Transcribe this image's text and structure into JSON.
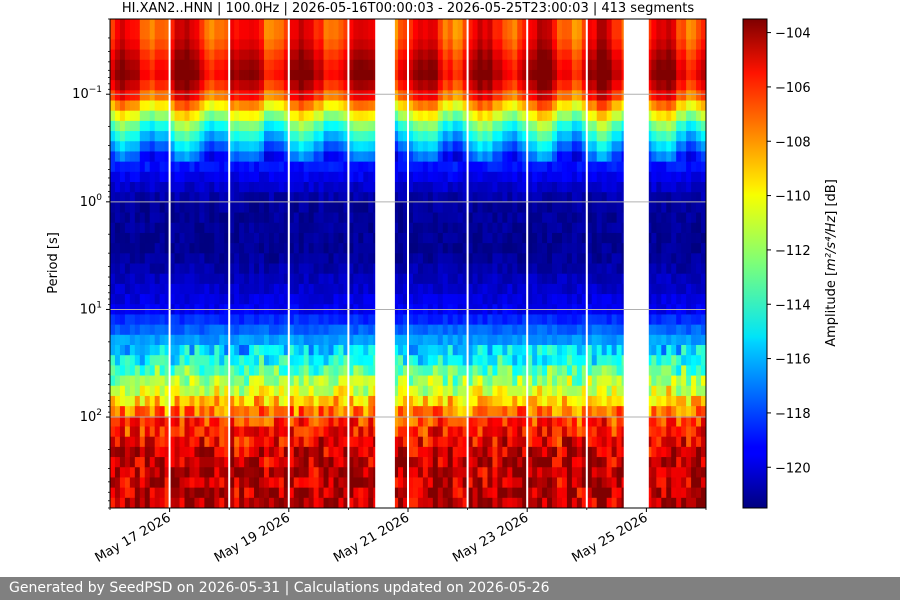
{
  "chart_data": {
    "type": "heatmap",
    "title": "HI.XAN2..HNN | 100.0Hz | 2026-05-16T00:00:03 - 2026-05-25T23:00:03 | 413 segments",
    "ylabel": "Period [s]",
    "y_scale": "log",
    "y_range": [
      0.02,
      700
    ],
    "y_ticks": [
      {
        "value": 0.1,
        "base": "10",
        "exp": "−1"
      },
      {
        "value": 1,
        "base": "10",
        "exp": "0"
      },
      {
        "value": 10,
        "base": "10",
        "exp": "1"
      },
      {
        "value": 100,
        "base": "10",
        "exp": "2"
      }
    ],
    "x_range_days": [
      "2026-05-16",
      "2026-05-26"
    ],
    "x_ticks": [
      {
        "label": "May 17 2026",
        "day": 1
      },
      {
        "label": "May 19 2026",
        "day": 3
      },
      {
        "label": "May 21 2026",
        "day": 5
      },
      {
        "label": "May 23 2026",
        "day": 7
      },
      {
        "label": "May 25 2026",
        "day": 9
      }
    ],
    "grid": true,
    "colorbar": {
      "label_prefix": "Amplitude [",
      "label_math": "m²/s⁴/Hz",
      "label_suffix": "] [dB]",
      "range": [
        -121.5,
        -103.5
      ],
      "ticks": [
        -104,
        -106,
        -108,
        -110,
        -112,
        -114,
        -116,
        -118,
        -120
      ],
      "tick_labels": [
        "−104",
        "−106",
        "−108",
        "−110",
        "−112",
        "−114",
        "−116",
        "−118",
        "−120"
      ],
      "colormap": "jet"
    },
    "data_gaps_days": [
      [
        4.45,
        4.78
      ],
      [
        8.62,
        9.04
      ]
    ],
    "segment_breaks_days": [
      0.0,
      1.0,
      2.0,
      3.0,
      4.0,
      5.0,
      6.0,
      7.0,
      8.0,
      9.0,
      10.0
    ],
    "psd_profile_by_period": [
      {
        "period": 0.03,
        "db": -106.5
      },
      {
        "period": 0.05,
        "db": -105.0
      },
      {
        "period": 0.07,
        "db": -104.5
      },
      {
        "period": 0.1,
        "db": -106.5
      },
      {
        "period": 0.2,
        "db": -113.5
      },
      {
        "period": 0.4,
        "db": -118.5
      },
      {
        "period": 1,
        "db": -121.0
      },
      {
        "period": 3,
        "db": -121.2
      },
      {
        "period": 10,
        "db": -119.5
      },
      {
        "period": 30,
        "db": -114.5
      },
      {
        "period": 60,
        "db": -110.5
      },
      {
        "period": 100,
        "db": -107.0
      },
      {
        "period": 200,
        "db": -105.0
      },
      {
        "period": 400,
        "db": -104.5
      },
      {
        "period": 700,
        "db": -104.5
      }
    ]
  },
  "footer": "Generated by SeedPSD on 2026-05-31 | Calculations updated on 2026-05-26"
}
